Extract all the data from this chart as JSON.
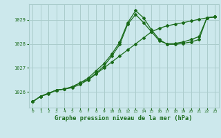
{
  "title": "Graphe pression niveau de la mer (hPa)",
  "bg_color": "#cce8ec",
  "grid_color": "#aacccc",
  "line_color": "#1a6b1a",
  "marker_color": "#1a6b1a",
  "xlim_min": -0.5,
  "xlim_max": 23.5,
  "ylim_min": 1025.35,
  "ylim_max": 1029.65,
  "yticks": [
    1026,
    1027,
    1028,
    1029
  ],
  "xticks": [
    0,
    1,
    2,
    3,
    4,
    5,
    6,
    7,
    8,
    9,
    10,
    11,
    12,
    13,
    14,
    15,
    16,
    17,
    18,
    19,
    20,
    21,
    22,
    23
  ],
  "series1": [
    1025.6,
    1025.82,
    1025.92,
    1026.08,
    1026.12,
    1026.18,
    1026.32,
    1026.5,
    1026.75,
    1027.0,
    1027.25,
    1027.5,
    1027.75,
    1028.0,
    1028.25,
    1028.5,
    1028.65,
    1028.75,
    1028.82,
    1028.88,
    1028.95,
    1029.02,
    1029.08,
    1029.12
  ],
  "series2": [
    1025.6,
    1025.82,
    1025.95,
    1026.08,
    1026.12,
    1026.22,
    1026.38,
    1026.52,
    1026.78,
    1027.08,
    1027.5,
    1027.98,
    1028.82,
    1029.22,
    1028.88,
    1028.5,
    1028.12,
    1028.0,
    1028.02,
    1028.08,
    1028.18,
    1028.3,
    1029.08,
    1029.12
  ],
  "series3": [
    1025.6,
    1025.82,
    1025.95,
    1026.08,
    1026.12,
    1026.22,
    1026.38,
    1026.58,
    1026.88,
    1027.18,
    1027.58,
    1028.08,
    1028.88,
    1029.38,
    1029.08,
    1028.58,
    1028.18,
    1027.98,
    1027.98,
    1028.02,
    1028.08,
    1028.18,
    1029.08,
    1029.12
  ]
}
